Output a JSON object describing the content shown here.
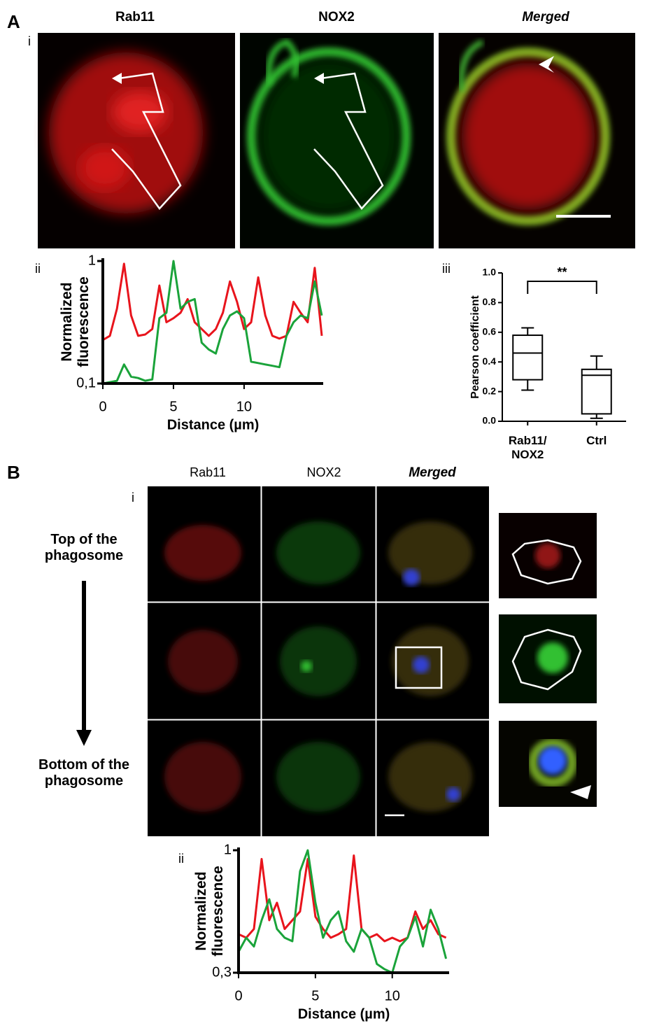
{
  "figure": {
    "panel_a": {
      "label": "A",
      "sub_label": "i",
      "columns": [
        "Rab11",
        "NOX2",
        "Merged"
      ]
    },
    "panel_b": {
      "label": "B",
      "sub_label": "i",
      "columns": [
        "Rab11",
        "NOX2",
        "Merged"
      ],
      "top_label": "Top of the phagosome",
      "bottom_label": "Bottom of the phagosome"
    }
  },
  "chart_data": [
    {
      "type": "line",
      "panel_label": "ii",
      "xlabel": "Distance (µm)",
      "ylabel": "Normalized fluorescence",
      "x": [
        0,
        0.5,
        1,
        1.5,
        2,
        2.5,
        3,
        3.5,
        4,
        4.5,
        5,
        5.5,
        6,
        6.5,
        7,
        7.5,
        8,
        8.5,
        9,
        9.5,
        10,
        10.5,
        11,
        11.5,
        12,
        12.5,
        13,
        13.5,
        14,
        14.5,
        15,
        15.5
      ],
      "series": [
        {
          "color": "#e8141c",
          "values": [
            0.42,
            0.45,
            0.65,
            0.98,
            0.6,
            0.45,
            0.46,
            0.5,
            0.82,
            0.55,
            0.58,
            0.62,
            0.72,
            0.55,
            0.5,
            0.45,
            0.5,
            0.62,
            0.85,
            0.7,
            0.5,
            0.55,
            0.88,
            0.6,
            0.45,
            0.43,
            0.45,
            0.7,
            0.62,
            0.55,
            0.95,
            0.45
          ]
        },
        {
          "color": "#1aa33a",
          "values": [
            0.1,
            0.11,
            0.12,
            0.24,
            0.15,
            0.14,
            0.12,
            0.13,
            0.58,
            0.62,
            1.0,
            0.65,
            0.7,
            0.72,
            0.4,
            0.35,
            0.32,
            0.5,
            0.6,
            0.63,
            0.58,
            0.26,
            0.25,
            0.24,
            0.23,
            0.22,
            0.45,
            0.55,
            0.6,
            0.58,
            0.85,
            0.6
          ]
        }
      ],
      "xlim": [
        0,
        15.6
      ],
      "xticks": [
        0,
        5,
        10
      ],
      "ylim": [
        0.1,
        1
      ],
      "yticks": [
        {
          "value": 0.1,
          "label": "0,1"
        },
        1
      ]
    },
    {
      "type": "box",
      "panel_label": "iii",
      "ylabel": "Pearson coefficient",
      "categories": [
        "Rab11/ NOX2",
        "Ctrl"
      ],
      "boxes": [
        {
          "whislo": 0.21,
          "q1": 0.28,
          "med": 0.46,
          "q3": 0.58,
          "whishi": 0.63
        },
        {
          "whislo": 0.02,
          "q1": 0.05,
          "med": 0.31,
          "q3": 0.35,
          "whishi": 0.44
        }
      ],
      "ylim": [
        0,
        1
      ],
      "yticks": [
        {
          "value": 0,
          "label": "0.0"
        },
        0.2,
        0.4,
        0.6,
        0.8,
        {
          "value": 1,
          "label": "1.0"
        }
      ],
      "annotation": "**",
      "color": "#000000"
    },
    {
      "type": "line",
      "panel_label": "ii",
      "xlabel": "Distance (µm)",
      "ylabel": "Normalized fluorescence",
      "x": [
        0,
        0.5,
        1,
        1.5,
        2,
        2.5,
        3,
        3.5,
        4,
        4.5,
        5,
        5.5,
        6,
        6.5,
        7,
        7.5,
        8,
        8.5,
        9,
        9.5,
        10,
        10.5,
        11,
        11.5,
        12,
        12.5,
        13,
        13.5
      ],
      "series": [
        {
          "color": "#e8141c",
          "values": [
            0.52,
            0.5,
            0.55,
            0.95,
            0.6,
            0.7,
            0.55,
            0.6,
            0.65,
            0.95,
            0.62,
            0.55,
            0.5,
            0.52,
            0.55,
            0.97,
            0.55,
            0.5,
            0.52,
            0.48,
            0.5,
            0.48,
            0.5,
            0.65,
            0.55,
            0.6,
            0.52,
            0.5
          ]
        },
        {
          "color": "#1aa33a",
          "values": [
            0.42,
            0.5,
            0.45,
            0.6,
            0.72,
            0.55,
            0.5,
            0.48,
            0.88,
            1.0,
            0.7,
            0.5,
            0.6,
            0.65,
            0.48,
            0.42,
            0.55,
            0.5,
            0.35,
            0.32,
            0.3,
            0.45,
            0.5,
            0.62,
            0.45,
            0.66,
            0.55,
            0.38
          ]
        }
      ],
      "xlim": [
        0,
        13.7
      ],
      "xticks": [
        0,
        5,
        10
      ],
      "ylim": [
        0.3,
        1
      ],
      "yticks": [
        {
          "value": 0.3,
          "label": "0,3"
        },
        1
      ]
    }
  ]
}
